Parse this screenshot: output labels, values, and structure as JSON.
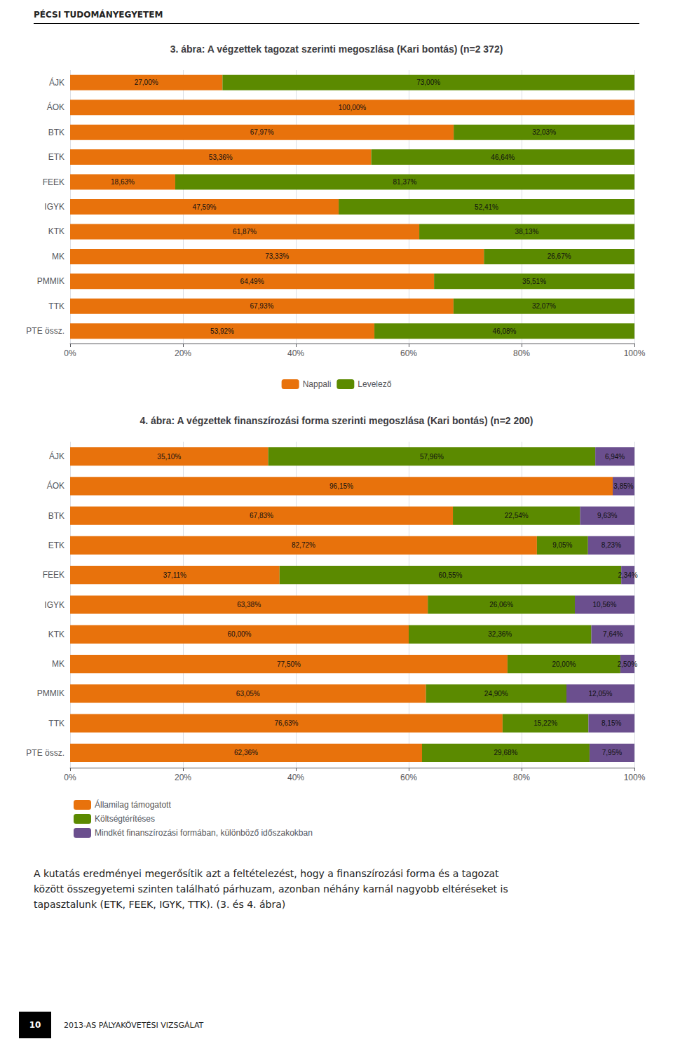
{
  "chart_data": [
    {
      "type": "bar",
      "orientation": "horizontal",
      "stacked": true,
      "data_labels": true,
      "grid": true,
      "legend": "bottom",
      "title": "3. ábra: A végzettek tagozat szerinti megoszlása (Kari bontás) (n=2 372)",
      "annotations": [
        "PÉCSI TUDOMÁNYEGYETEM"
      ],
      "categories": [
        "ÁJK",
        "ÁOK",
        "BTK",
        "ETK",
        "FEEK",
        "IGYK",
        "KTK",
        "MK",
        "PMMIK",
        "TTK",
        "PTE össz."
      ],
      "series": [
        {
          "name": "Nappali",
          "color": "#E8720C",
          "values": [
            27.0,
            100.0,
            67.97,
            53.36,
            18.63,
            47.59,
            61.87,
            73.33,
            64.49,
            67.93,
            53.92
          ],
          "value_labels": [
            "27,00%",
            "100,00%",
            "67,97%",
            "53,36%",
            "18,63%",
            "47,59%",
            "61,87%",
            "73,33%",
            "64,49%",
            "67,93%",
            "53,92%"
          ]
        },
        {
          "name": "Levelező",
          "color": "#5B8A00",
          "values": [
            73.0,
            0.0,
            32.03,
            46.64,
            81.37,
            52.41,
            38.13,
            26.67,
            35.51,
            32.07,
            46.08
          ],
          "value_labels": [
            "73,00%",
            null,
            "32,03%",
            "46,64%",
            "81,37%",
            "52,41%",
            "38,13%",
            "26,67%",
            "35,51%",
            "32,07%",
            "46,08%"
          ]
        }
      ],
      "xlim": [
        0,
        100
      ],
      "xticks": [
        {
          "value": 0,
          "label": "0%"
        },
        {
          "value": 20,
          "label": "20%"
        },
        {
          "value": 40,
          "label": "40%"
        },
        {
          "value": 60,
          "label": "60%"
        },
        {
          "value": 80,
          "label": "80%"
        },
        {
          "value": 100,
          "label": "100%"
        }
      ]
    },
    {
      "type": "bar",
      "orientation": "horizontal",
      "stacked": true,
      "data_labels": true,
      "grid": true,
      "legend": "bottom left",
      "title": "4. ábra: A végzettek finanszírozási forma szerinti megoszlása (Kari bontás) (n=2 200)",
      "annotations": [
        "A kutatás eredményei megerősítik azt a feltételezést, hogy a finanszírozási forma és a tagozat",
        "között összegyetemi szinten található párhuzam, azonban néhány karnál nagyobb eltéréseket is",
        "tapasztalunk (ETK, FEEK, IGYK, TTK). (3. és 4. ábra)",
        "10",
        "2013-AS PÁLYAKÖVETÉSI VIZSGÁLAT"
      ],
      "categories": [
        "ÁJK",
        "ÁOK",
        "BTK",
        "ETK",
        "FEEK",
        "IGYK",
        "KTK",
        "MK",
        "PMMIK",
        "TTK",
        "PTE össz."
      ],
      "series": [
        {
          "name": "Államilag támogatott",
          "color": "#E8720C",
          "values": [
            35.1,
            96.15,
            67.83,
            82.72,
            37.11,
            63.38,
            60.0,
            77.5,
            63.05,
            76.63,
            62.36
          ],
          "value_labels": [
            "35,10%",
            "96,15%",
            "67,83%",
            "82,72%",
            "37,11%",
            "63,38%",
            "60,00%",
            "77,50%",
            "63,05%",
            "76,63%",
            "62,36%"
          ]
        },
        {
          "name": "Költségtérítéses",
          "color": "#5B8A00",
          "values": [
            57.96,
            0.0,
            22.54,
            9.05,
            60.55,
            26.06,
            32.36,
            20.0,
            24.9,
            15.22,
            29.68
          ],
          "value_labels": [
            "57,96%",
            null,
            "22,54%",
            "9,05%",
            "60,55%",
            "26,06%",
            "32,36%",
            "20,00%",
            "24,90%",
            "15,22%",
            "29,68%"
          ]
        },
        {
          "name": "Mindkét finanszírozási formában, különböző időszakokban",
          "color": "#6B4F8E",
          "values": [
            6.94,
            3.85,
            9.63,
            8.23,
            2.34,
            10.56,
            7.64,
            2.5,
            12.05,
            8.15,
            7.95
          ],
          "value_labels": [
            "6,94%",
            "3,85%",
            "9,63%",
            "8,23%",
            "2,34%",
            "10,56%",
            "7,64%",
            "2,50%",
            "12,05%",
            "8,15%",
            "7,95%"
          ]
        }
      ],
      "xlim": [
        0,
        100
      ],
      "xticks": [
        {
          "value": 0,
          "label": "0%"
        },
        {
          "value": 20,
          "label": "20%"
        },
        {
          "value": 40,
          "label": "40%"
        },
        {
          "value": 60,
          "label": "60%"
        },
        {
          "value": 80,
          "label": "80%"
        },
        {
          "value": 100,
          "label": "100%"
        }
      ]
    }
  ]
}
